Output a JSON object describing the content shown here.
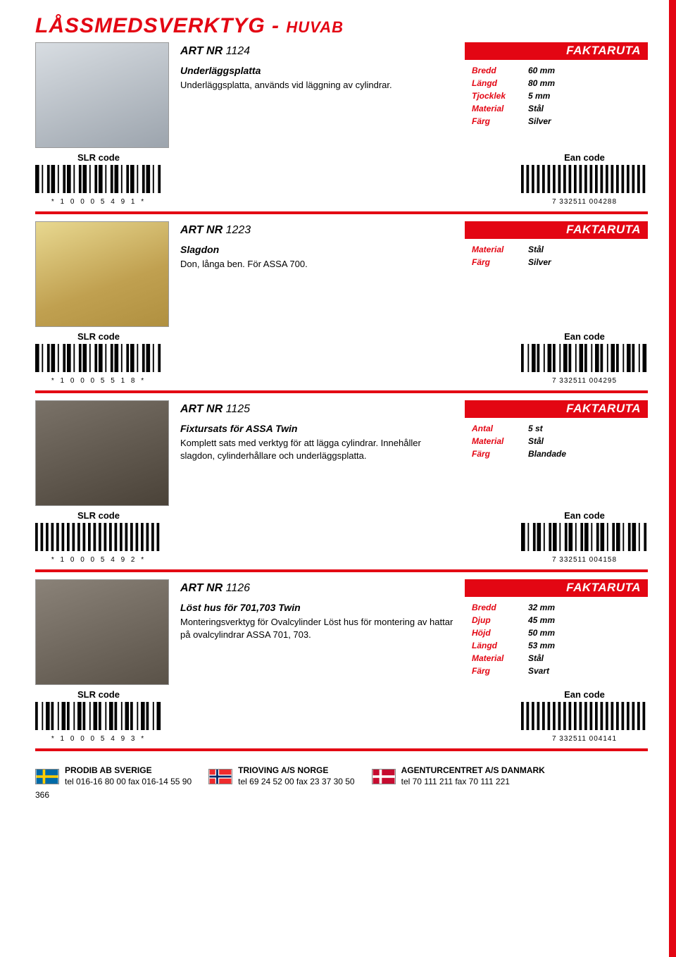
{
  "page_title_main": "LÅSSMEDSVERKTYG",
  "page_title_sep": " - ",
  "page_title_sub": "HUVAB",
  "faktaruta_label": "FAKTARUTA",
  "artnr_label": "ART NR",
  "slr_label": "SLR code",
  "ean_label": "Ean code",
  "products": [
    {
      "artnr": "1124",
      "name": "Underläggsplatta",
      "desc": "Underläggsplatta, används vid läggning av cylindrar.",
      "facts": [
        {
          "key": "Bredd",
          "val": "60 mm"
        },
        {
          "key": "Längd",
          "val": "80 mm"
        },
        {
          "key": "Tjocklek",
          "val": "5 mm"
        },
        {
          "key": "Material",
          "val": "Stål"
        },
        {
          "key": "Färg",
          "val": "Silver"
        }
      ],
      "slr_code": "* 1 0 0 0 5 4 9 1 *",
      "ean_code": "7 332511 004288",
      "img_class": "img-plate"
    },
    {
      "artnr": "1223",
      "name": "Slagdon",
      "desc": "Don, långa ben. För ASSA 700.",
      "facts": [
        {
          "key": "Material",
          "val": "Stål"
        },
        {
          "key": "Färg",
          "val": "Silver"
        }
      ],
      "slr_code": "* 1 0 0 0 5 5 1 8 *",
      "ean_code": "7 332511 004295",
      "img_class": "img-slagdon"
    },
    {
      "artnr": "1125",
      "name": "Fixtursats för ASSA Twin",
      "desc": "Komplett sats med verktyg för att lägga cylindrar. Innehåller slagdon, cylinderhållare och underläggsplatta.",
      "facts": [
        {
          "key": "Antal",
          "val": "5 st"
        },
        {
          "key": "Material",
          "val": "Stål"
        },
        {
          "key": "Färg",
          "val": "Blandade"
        }
      ],
      "slr_code": "* 1 0 0 0 5 4 9 2 *",
      "ean_code": "7 332511 004158",
      "img_class": "img-fixtur"
    },
    {
      "artnr": "1126",
      "name": "Löst hus för 701,703 Twin",
      "desc": "Monteringsverktyg för Ovalcylinder Löst hus för montering av hattar på ovalcylindrar ASSA 701, 703.",
      "facts": [
        {
          "key": "Bredd",
          "val": "32 mm"
        },
        {
          "key": "Djup",
          "val": "45 mm"
        },
        {
          "key": "Höjd",
          "val": "50 mm"
        },
        {
          "key": "Längd",
          "val": "53 mm"
        },
        {
          "key": "Material",
          "val": "Stål"
        },
        {
          "key": "Färg",
          "val": "Svart"
        }
      ],
      "slr_code": "* 1 0 0 0 5 4 9 3 *",
      "ean_code": "7 332511 004141",
      "img_class": "img-hus"
    }
  ],
  "footer": {
    "se": {
      "company": "PRODIB AB  SVERIGE",
      "contact": "tel 016-16 80 00   fax 016-14 55 90"
    },
    "no": {
      "company": "TRIOVING A/S  NORGE",
      "contact": "tel 69 24 52 00   fax 23 37 30 50"
    },
    "dk": {
      "company": "AGENTURCENTRET A/S DANMARK",
      "contact": "tel 70 111 211   fax 70 111 221"
    }
  },
  "page_number": "366",
  "colors": {
    "red": "#e30613"
  }
}
